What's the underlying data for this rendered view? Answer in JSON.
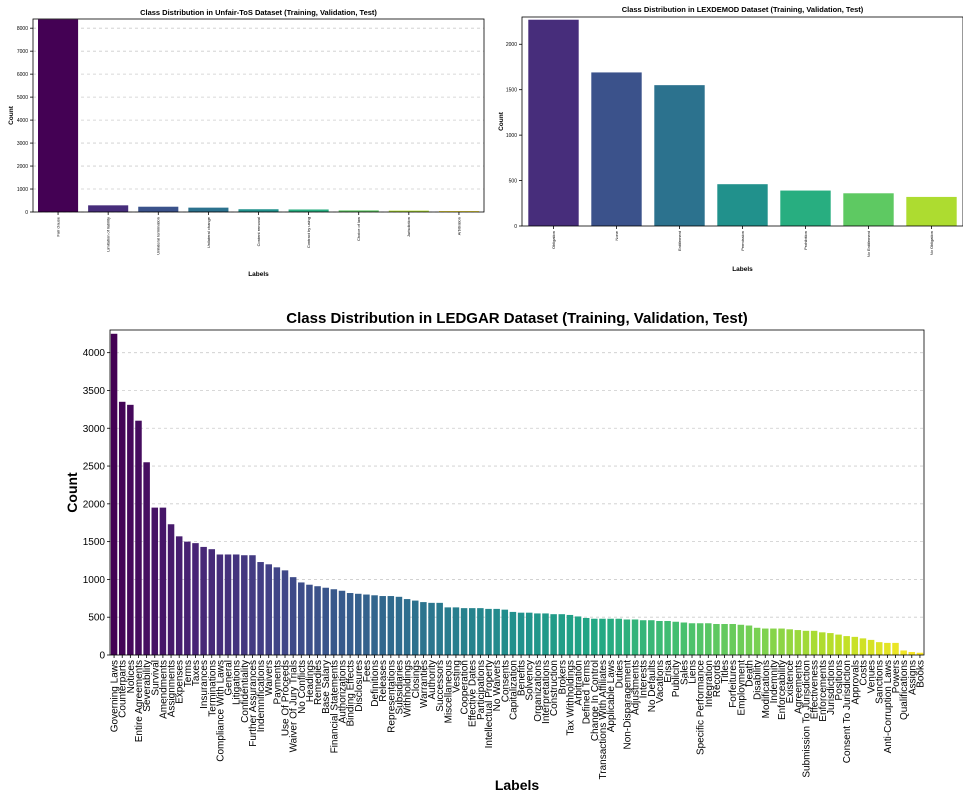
{
  "chart_data": [
    {
      "type": "bar",
      "title": "Class Distribution in Unfair-ToS Dataset (Training, Validation, Test)",
      "xlabel": "Labels",
      "ylabel": "Count",
      "ylim": [
        0,
        8400
      ],
      "yticks": [
        0,
        1000,
        2000,
        3000,
        4000,
        5000,
        6000,
        7000,
        8000
      ],
      "grid": true,
      "categories": [
        "Fair clause",
        "Limitation of liability",
        "Unilateral termination",
        "Unilateral change",
        "Content removal",
        "Contract by using",
        "Choice of law",
        "Jurisdiction",
        "Arbitration"
      ],
      "values": [
        8380,
        290,
        230,
        190,
        120,
        110,
        70,
        60,
        40
      ],
      "colors": [
        "#440154",
        "#472d7b",
        "#3b528b",
        "#2c728e",
        "#21918c",
        "#28ae80",
        "#5ec962",
        "#addc30",
        "#fde725"
      ]
    },
    {
      "type": "bar",
      "title": "Class Distribution in LEXDEMOD Dataset (Training, Validation, Test)",
      "xlabel": "Labels",
      "ylabel": "Count",
      "ylim": [
        0,
        2300
      ],
      "yticks": [
        0,
        500,
        1000,
        1500,
        2000
      ],
      "grid": false,
      "categories": [
        "Obligation",
        "None",
        "Entitlement",
        "Permission",
        "Prohibition",
        "No Entitlement",
        "No Obligation"
      ],
      "values": [
        2270,
        1690,
        1550,
        460,
        390,
        360,
        320
      ],
      "colors": [
        "#472d7b",
        "#3b528b",
        "#2c728e",
        "#21918c",
        "#28ae80",
        "#5ec962",
        "#addc30"
      ]
    },
    {
      "type": "bar",
      "title": "Class Distribution in LEDGAR Dataset (Training, Validation, Test)",
      "xlabel": "Labels",
      "ylabel": "Count",
      "ylim": [
        0,
        4300
      ],
      "yticks": [
        0,
        500,
        1000,
        1500,
        2000,
        2500,
        3000,
        3500,
        4000
      ],
      "grid": true,
      "categories": [
        "Governing Laws",
        "Counterparts",
        "Notices",
        "Entire Agreements",
        "Severability",
        "Survival",
        "Amendments",
        "Assignments",
        "Expenses",
        "Terms",
        "Taxes",
        "Insurances",
        "Terminations",
        "Compliance With Laws",
        "General",
        "Litigations",
        "Confidentiality",
        "Further Assurances",
        "Indemnifications",
        "Waivers",
        "Payments",
        "Use Of Proceeds",
        "Waiver Of Jury Trials",
        "No Conflicts",
        "Headings",
        "Remedies",
        "Base Salary",
        "Financial Statements",
        "Authorizations",
        "Binding Effects",
        "Disclosures",
        "Fees",
        "Definitions",
        "Releases",
        "Representations",
        "Subsidiaries",
        "Withholdings",
        "Closings",
        "Warranties",
        "Authority",
        "Successors",
        "Miscellaneous",
        "Vesting",
        "Cooperation",
        "Effective Dates",
        "Participations",
        "Intellectual Property",
        "No Waivers",
        "Consents",
        "Capitalization",
        "Benefits",
        "Solvency",
        "Organizations",
        "Interpretations",
        "Construction",
        "Brokers",
        "Tax Withholdings",
        "Arbitration",
        "Defined Terms",
        "Change In Control",
        "Transactions With Affiliates",
        "Applicable Laws",
        "Duties",
        "Non-Disparagement",
        "Adjustments",
        "Interests",
        "No Defaults",
        "Vacations",
        "Erisa",
        "Publicity",
        "Sales",
        "Liens",
        "Specific Performance",
        "Integration",
        "Records",
        "Titles",
        "Forfeitures",
        "Employment",
        "Death",
        "Disability",
        "Modifications",
        "Indemnity",
        "Enforceability",
        "Existence",
        "Agreements",
        "Submission To Jurisdiction",
        "Effectiveness",
        "Enforcements",
        "Jurisdictions",
        "Positions",
        "Consent To Jurisdiction",
        "Approvals",
        "Costs",
        "Venues",
        "Sanctions",
        "Anti-Corruption Laws",
        "Powers",
        "Qualifications",
        "Assigns",
        "Books"
      ],
      "values": [
        4250,
        3350,
        3310,
        3100,
        2550,
        1950,
        1950,
        1730,
        1570,
        1500,
        1480,
        1430,
        1400,
        1330,
        1330,
        1330,
        1320,
        1320,
        1230,
        1200,
        1160,
        1120,
        1030,
        960,
        930,
        910,
        890,
        870,
        850,
        820,
        810,
        800,
        790,
        780,
        780,
        770,
        740,
        720,
        700,
        690,
        690,
        630,
        630,
        620,
        620,
        620,
        610,
        610,
        600,
        570,
        560,
        560,
        550,
        550,
        540,
        540,
        530,
        510,
        490,
        480,
        480,
        480,
        480,
        470,
        470,
        460,
        460,
        450,
        450,
        440,
        430,
        420,
        420,
        420,
        410,
        410,
        410,
        400,
        390,
        360,
        350,
        350,
        350,
        340,
        330,
        320,
        320,
        300,
        290,
        270,
        250,
        240,
        220,
        200,
        170,
        160,
        160,
        60,
        40,
        30
      ],
      "colormap": "viridis"
    }
  ]
}
